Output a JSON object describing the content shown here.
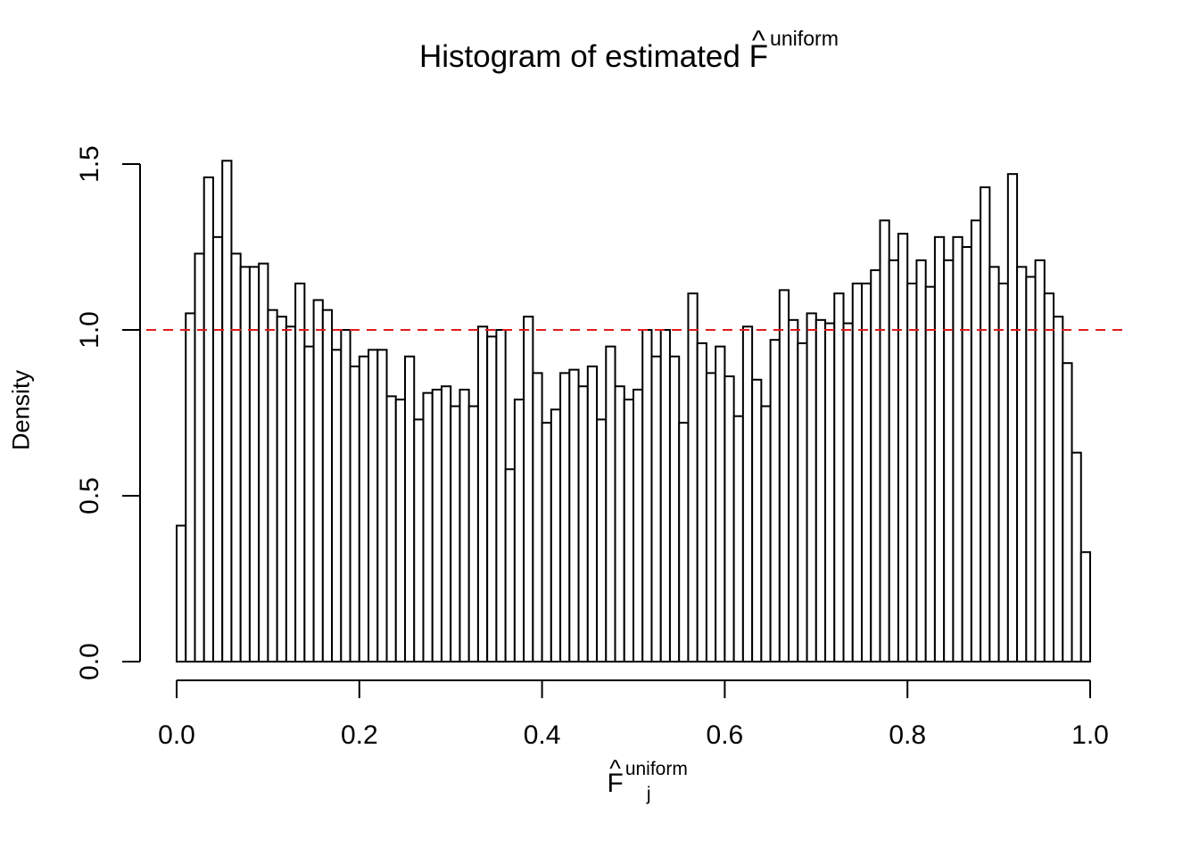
{
  "chart_data": {
    "type": "bar",
    "title": "Histogram of estimated",
    "title_symbol": "F",
    "title_superscript": "uniform",
    "xlabel_symbol": "F",
    "xlabel_superscript": "uniform",
    "xlabel_subscript": "j",
    "ylabel": "Density",
    "xlim": [
      0,
      1
    ],
    "ylim": [
      0,
      1.5
    ],
    "x_ticks": [
      "0.0",
      "0.2",
      "0.4",
      "0.6",
      "0.8",
      "1.0"
    ],
    "y_ticks": [
      "0.0",
      "0.5",
      "1.0",
      "1.5"
    ],
    "bin_width": 0.01,
    "values": [
      0.41,
      1.05,
      1.23,
      1.46,
      1.28,
      1.51,
      1.23,
      1.19,
      1.19,
      1.2,
      1.06,
      1.04,
      1.01,
      1.14,
      0.95,
      1.09,
      1.06,
      0.94,
      1.0,
      0.89,
      0.92,
      0.94,
      0.94,
      0.8,
      0.79,
      0.92,
      0.73,
      0.81,
      0.82,
      0.83,
      0.77,
      0.82,
      0.77,
      1.01,
      0.98,
      1.0,
      0.58,
      0.79,
      1.04,
      0.87,
      0.72,
      0.76,
      0.87,
      0.88,
      0.83,
      0.89,
      0.73,
      0.95,
      0.83,
      0.79,
      0.82,
      1.0,
      0.92,
      1.0,
      0.92,
      0.72,
      1.11,
      0.96,
      0.87,
      0.95,
      0.86,
      0.74,
      1.01,
      0.85,
      0.77,
      0.97,
      1.12,
      1.03,
      0.96,
      1.05,
      1.03,
      1.02,
      1.11,
      1.02,
      1.14,
      1.14,
      1.18,
      1.33,
      1.21,
      1.29,
      1.14,
      1.21,
      1.13,
      1.28,
      1.21,
      1.28,
      1.25,
      1.33,
      1.43,
      1.19,
      1.14,
      1.47,
      1.19,
      1.16,
      1.21,
      1.11,
      1.04,
      0.9,
      0.63,
      0.33
    ],
    "reference_line": {
      "y": 1.0,
      "color": "#e31a1c",
      "style": "dashed"
    }
  }
}
